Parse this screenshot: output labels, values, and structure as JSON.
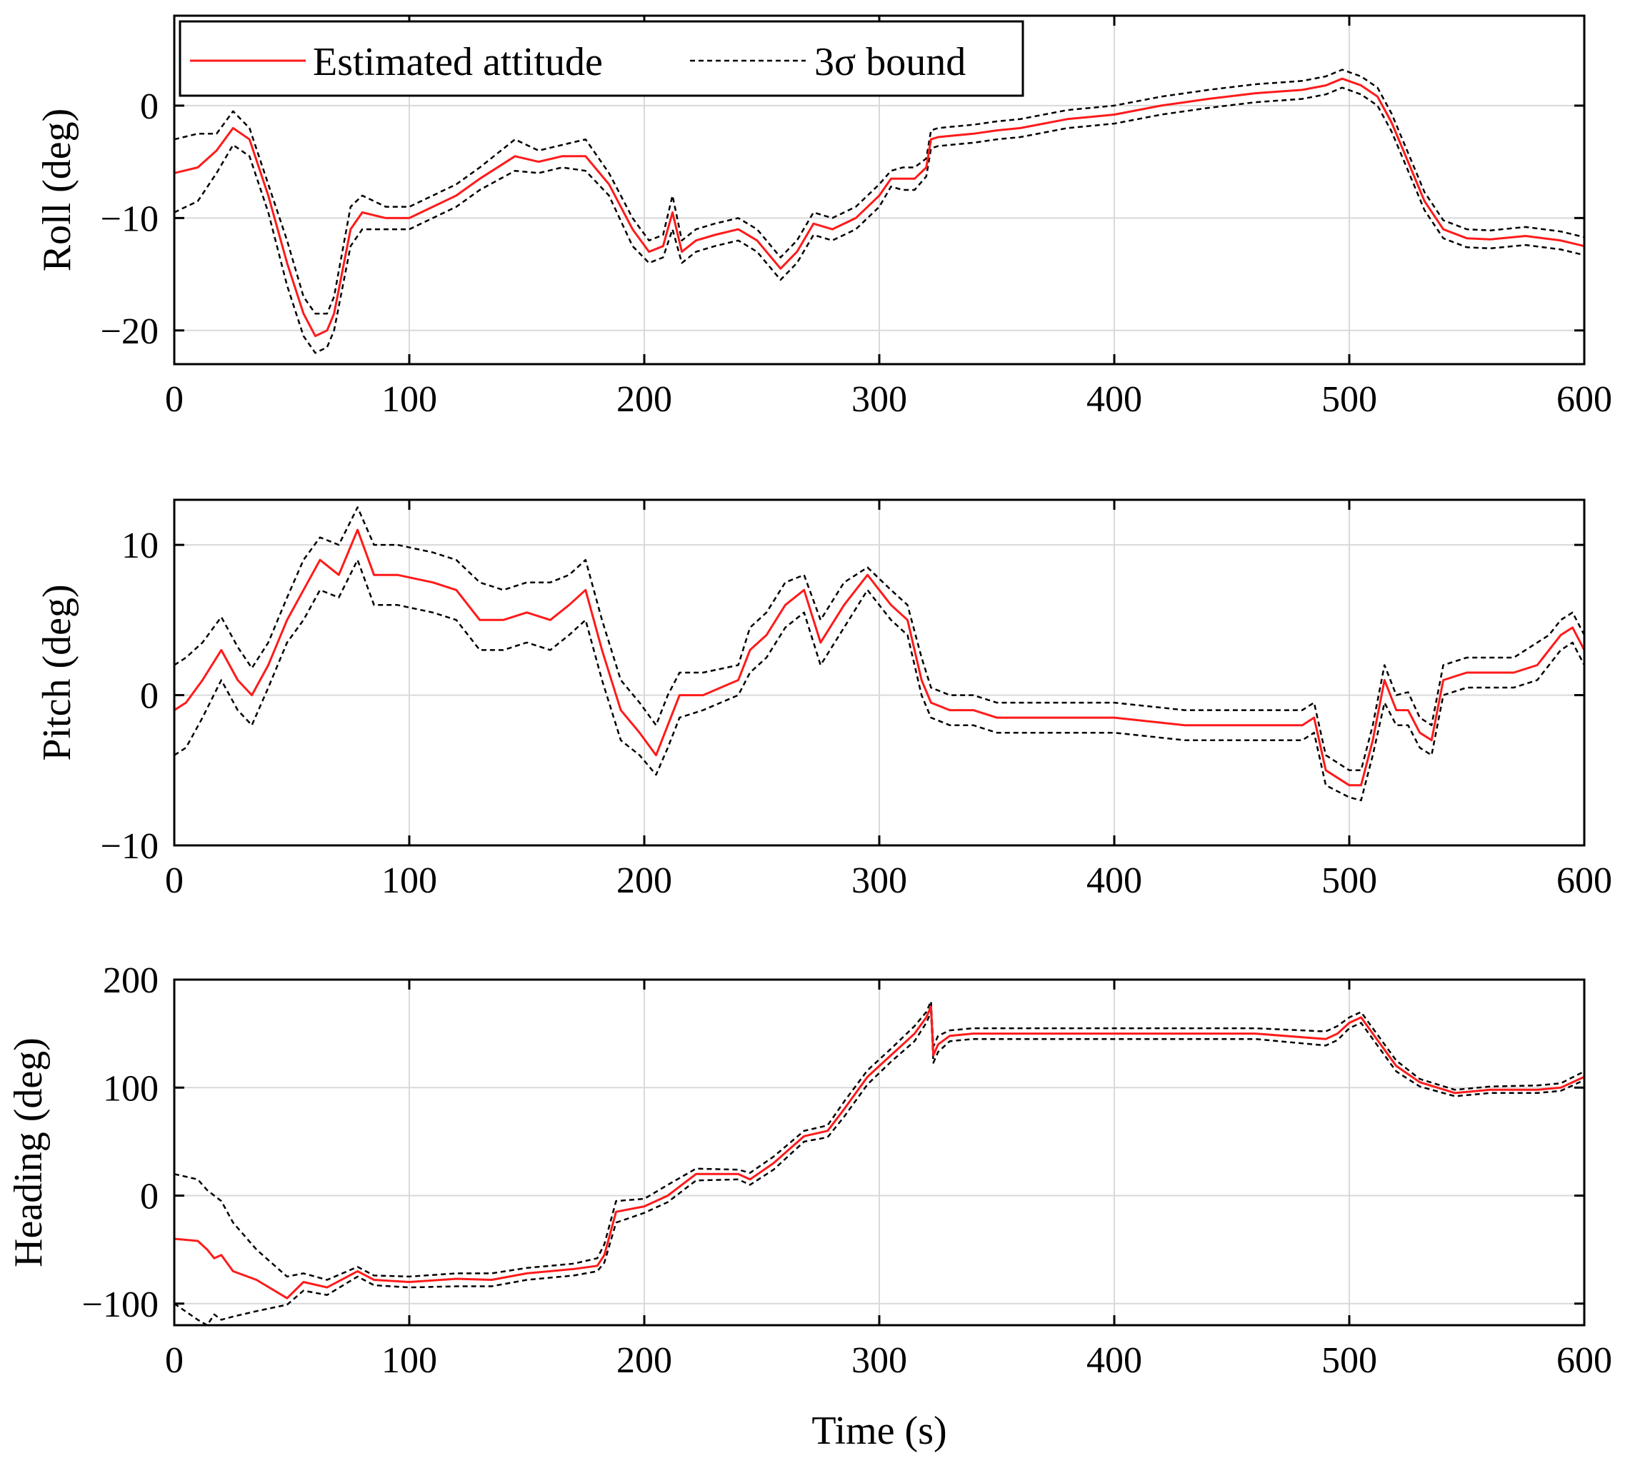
{
  "figure": {
    "xlabel": "Time (s)",
    "legend": {
      "placement": "top-left",
      "entries": [
        {
          "label": "Estimated attitude",
          "color": "#ff1a1a",
          "style": "solid"
        },
        {
          "label": "3σ bound",
          "color": "#000000",
          "style": "dashed"
        }
      ]
    }
  },
  "chart_data": [
    {
      "type": "line",
      "title": "",
      "xlabel": "Time (s)",
      "ylabel": "Roll (deg)",
      "xlim": [
        0,
        600
      ],
      "ylim": [
        -23,
        8
      ],
      "xticks": [
        0,
        100,
        200,
        300,
        400,
        500,
        600
      ],
      "yticks": [
        -20,
        -10,
        0
      ],
      "ytick_labels": [
        "−20",
        "−10",
        "0"
      ],
      "grid": true,
      "x": [
        0,
        10,
        18,
        25,
        32,
        40,
        48,
        55,
        60,
        65,
        68,
        75,
        80,
        90,
        100,
        110,
        120,
        130,
        145,
        155,
        165,
        175,
        185,
        195,
        202,
        208,
        212,
        216,
        222,
        230,
        240,
        248,
        258,
        265,
        272,
        280,
        290,
        300,
        305,
        310,
        315,
        320,
        322,
        325,
        330,
        340,
        350,
        360,
        380,
        400,
        420,
        440,
        460,
        480,
        490,
        497,
        505,
        512,
        518,
        525,
        532,
        540,
        550,
        560,
        575,
        590,
        600
      ],
      "series": [
        {
          "name": "Estimated attitude",
          "color": "#ff1a1a",
          "style": "solid",
          "values": [
            -6,
            -5.5,
            -4,
            -2,
            -3,
            -8,
            -14,
            -18.5,
            -20.5,
            -20,
            -18.5,
            -11,
            -9.5,
            -10,
            -10,
            -9,
            -8,
            -6.5,
            -4.5,
            -5,
            -4.5,
            -4.5,
            -7,
            -11,
            -13,
            -12.5,
            -9.5,
            -13,
            -12,
            -11.5,
            -11,
            -12,
            -14.5,
            -13,
            -10.5,
            -11,
            -10,
            -8,
            -6.5,
            -6.5,
            -6.5,
            -5.5,
            -3,
            -2.8,
            -2.7,
            -2.5,
            -2.2,
            -2,
            -1.2,
            -0.8,
            0,
            0.6,
            1.1,
            1.4,
            1.8,
            2.4,
            1.8,
            0.8,
            -1.5,
            -5,
            -8.5,
            -11,
            -11.8,
            -11.9,
            -11.6,
            -12,
            -12.5
          ]
        },
        {
          "name": "3σ upper",
          "color": "#000000",
          "style": "dashed",
          "values": [
            -3,
            -2.5,
            -2.5,
            -0.5,
            -2,
            -7,
            -12,
            -17,
            -18.5,
            -18.5,
            -17,
            -9,
            -8,
            -9,
            -9,
            -8,
            -7,
            -5.5,
            -3,
            -4,
            -3.5,
            -3,
            -6,
            -10,
            -12,
            -11.5,
            -8,
            -12,
            -11,
            -10.5,
            -10,
            -11,
            -13.5,
            -12,
            -9.5,
            -10,
            -9,
            -7,
            -5.8,
            -5.5,
            -5.5,
            -4.7,
            -2.2,
            -2,
            -1.9,
            -1.7,
            -1.4,
            -1.2,
            -0.4,
            0,
            0.8,
            1.4,
            1.9,
            2.2,
            2.6,
            3.2,
            2.6,
            1.6,
            -0.7,
            -4.2,
            -7.7,
            -10.2,
            -11,
            -11.1,
            -10.8,
            -11.2,
            -11.7
          ]
        },
        {
          "name": "3σ lower",
          "color": "#000000",
          "style": "dashed",
          "values": [
            -9.5,
            -8.5,
            -6,
            -3.5,
            -4.5,
            -9.5,
            -16,
            -20.5,
            -22,
            -21.5,
            -20,
            -12.5,
            -11,
            -11,
            -11,
            -10,
            -9,
            -7.5,
            -5.8,
            -6,
            -5.5,
            -5.8,
            -8,
            -12.5,
            -14,
            -13.5,
            -11,
            -14,
            -13,
            -12.5,
            -12,
            -13,
            -15.5,
            -14,
            -11.5,
            -12,
            -11,
            -9,
            -7.2,
            -7.5,
            -7.5,
            -6.3,
            -3.8,
            -3.6,
            -3.5,
            -3.3,
            -3,
            -2.8,
            -2,
            -1.6,
            -0.8,
            -0.2,
            0.3,
            0.6,
            1,
            1.6,
            1,
            0,
            -2.3,
            -5.8,
            -9.3,
            -11.8,
            -12.6,
            -12.7,
            -12.4,
            -12.8,
            -13.3
          ]
        }
      ]
    },
    {
      "type": "line",
      "title": "",
      "xlabel": "Time (s)",
      "ylabel": "Pitch (deg)",
      "xlim": [
        0,
        600
      ],
      "ylim": [
        -10,
        13
      ],
      "xticks": [
        0,
        100,
        200,
        300,
        400,
        500,
        600
      ],
      "yticks": [
        -10,
        0,
        10
      ],
      "ytick_labels": [
        "−10",
        "0",
        "10"
      ],
      "grid": true,
      "x": [
        0,
        5,
        12,
        20,
        27,
        33,
        40,
        48,
        55,
        62,
        70,
        78,
        85,
        95,
        110,
        120,
        130,
        140,
        150,
        160,
        168,
        175,
        182,
        190,
        198,
        205,
        210,
        215,
        225,
        240,
        245,
        252,
        260,
        268,
        275,
        285,
        295,
        305,
        312,
        318,
        322,
        330,
        340,
        350,
        370,
        400,
        430,
        460,
        480,
        485,
        490,
        500,
        505,
        510,
        515,
        520,
        525,
        530,
        535,
        540,
        550,
        560,
        570,
        580,
        585,
        590,
        595,
        600
      ],
      "series": [
        {
          "name": "Estimated attitude",
          "color": "#ff1a1a",
          "style": "solid",
          "values": [
            -1,
            -0.5,
            1,
            3,
            1,
            0,
            2,
            5,
            7,
            9,
            8,
            11,
            8,
            8,
            7.5,
            7,
            5,
            5,
            5.5,
            5,
            6,
            7,
            3,
            -1,
            -2.5,
            -4,
            -2,
            0,
            0,
            1,
            3,
            4,
            6,
            7,
            3.5,
            6,
            8,
            6,
            5,
            1,
            -0.5,
            -1,
            -1,
            -1.5,
            -1.5,
            -1.5,
            -2,
            -2,
            -2,
            -1.5,
            -5,
            -6,
            -6,
            -3,
            1,
            -1,
            -1,
            -2.5,
            -3,
            1,
            1.5,
            1.5,
            1.5,
            2,
            3,
            4,
            4.5,
            3
          ]
        },
        {
          "name": "3σ upper",
          "color": "#000000",
          "style": "dashed",
          "values": [
            2,
            2.5,
            3.5,
            5.2,
            3.2,
            1.8,
            3.5,
            6.5,
            9,
            10.5,
            10,
            12.5,
            10,
            10,
            9.5,
            9,
            7.5,
            7,
            7.5,
            7.5,
            8,
            9,
            5,
            1,
            -0.5,
            -2,
            0,
            1.5,
            1.5,
            2,
            4.5,
            5.5,
            7.5,
            8,
            5,
            7.5,
            8.5,
            7,
            6,
            2.5,
            0.5,
            0,
            0,
            -0.5,
            -0.5,
            -0.5,
            -1,
            -1,
            -1,
            -0.5,
            -4,
            -5,
            -5,
            -2,
            2,
            0,
            0.2,
            -1.5,
            -2,
            2,
            2.5,
            2.5,
            2.5,
            3.5,
            4,
            5,
            5.5,
            4
          ]
        },
        {
          "name": "3σ lower",
          "color": "#000000",
          "style": "dashed",
          "values": [
            -4,
            -3.5,
            -1.5,
            1,
            -1,
            -2,
            0.5,
            3.5,
            5,
            7,
            6.5,
            9,
            6,
            6,
            5.5,
            5,
            3,
            3,
            3.5,
            3,
            4,
            5,
            1,
            -3,
            -4,
            -5.3,
            -3.5,
            -1.5,
            -1,
            0,
            1.5,
            2.5,
            4.5,
            5.5,
            2,
            4.5,
            7,
            5,
            4,
            0,
            -1.5,
            -2,
            -2,
            -2.5,
            -2.5,
            -2.5,
            -3,
            -3,
            -3,
            -2.5,
            -6,
            -6.8,
            -7,
            -4,
            -0.5,
            -2,
            -2,
            -3.5,
            -4,
            0,
            0.5,
            0.5,
            0.5,
            1,
            2,
            3,
            3.5,
            2
          ]
        }
      ]
    },
    {
      "type": "line",
      "title": "",
      "xlabel": "Time (s)",
      "ylabel": "Heading (deg)",
      "xlim": [
        0,
        600
      ],
      "ylim": [
        -120,
        200
      ],
      "xticks": [
        0,
        100,
        200,
        300,
        400,
        500,
        600
      ],
      "yticks": [
        -100,
        0,
        100,
        200
      ],
      "ytick_labels": [
        "−100",
        "0",
        "100",
        "200"
      ],
      "grid": true,
      "x": [
        0,
        10,
        14,
        17,
        20,
        25,
        35,
        48,
        55,
        65,
        78,
        85,
        100,
        120,
        135,
        150,
        170,
        180,
        183,
        188,
        200,
        210,
        222,
        240,
        245,
        255,
        268,
        278,
        285,
        295,
        305,
        315,
        320,
        322,
        323,
        325,
        330,
        340,
        400,
        460,
        490,
        495,
        500,
        505,
        510,
        520,
        530,
        545,
        560,
        580,
        590,
        600
      ],
      "series": [
        {
          "name": "Estimated attitude",
          "color": "#ff1a1a",
          "style": "solid",
          "values": [
            -40,
            -42,
            -50,
            -58,
            -55,
            -70,
            -78,
            -95,
            -80,
            -85,
            -70,
            -78,
            -80,
            -77,
            -78,
            -72,
            -68,
            -65,
            -55,
            -15,
            -10,
            0,
            20,
            20,
            15,
            30,
            55,
            60,
            80,
            110,
            130,
            150,
            165,
            175,
            130,
            140,
            148,
            150,
            150,
            150,
            145,
            150,
            160,
            165,
            150,
            120,
            105,
            95,
            98,
            98,
            100,
            110
          ]
        },
        {
          "name": "3σ upper",
          "color": "#000000",
          "style": "dashed",
          "values": [
            20,
            15,
            5,
            0,
            -5,
            -25,
            -50,
            -75,
            -72,
            -78,
            -66,
            -74,
            -75,
            -72,
            -72,
            -67,
            -63,
            -58,
            -45,
            -5,
            -3,
            10,
            25,
            24,
            21,
            36,
            60,
            65,
            87,
            116,
            136,
            157,
            170,
            180,
            138,
            148,
            153,
            155,
            155,
            155,
            152,
            157,
            165,
            170,
            155,
            125,
            108,
            98,
            101,
            102,
            104,
            115
          ]
        },
        {
          "name": "3σ lower",
          "color": "#000000",
          "style": "dashed",
          "values": [
            -100,
            -115,
            -120,
            -110,
            -115,
            -112,
            -107,
            -101,
            -88,
            -92,
            -75,
            -83,
            -85,
            -84,
            -84,
            -78,
            -74,
            -70,
            -62,
            -25,
            -16,
            -6,
            14,
            15,
            10,
            24,
            50,
            54,
            73,
            103,
            124,
            143,
            160,
            170,
            123,
            133,
            143,
            145,
            145,
            145,
            139,
            144,
            155,
            160,
            145,
            115,
            101,
            92,
            95,
            95,
            97,
            107
          ]
        }
      ]
    }
  ]
}
